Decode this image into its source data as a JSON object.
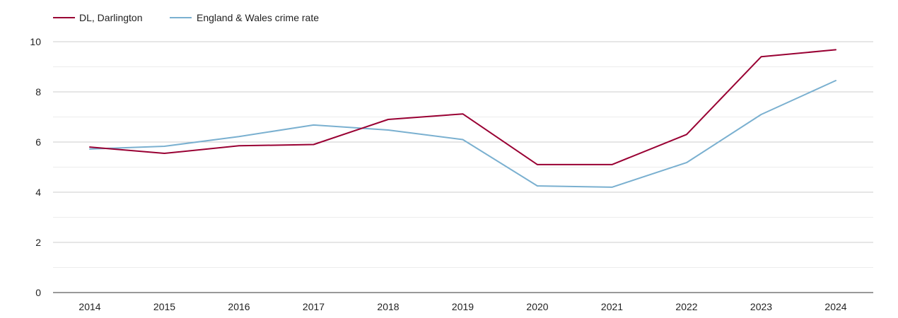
{
  "chart_data": {
    "type": "line",
    "title": "",
    "xlabel": "",
    "ylabel": "",
    "categories": [
      "2014",
      "2015",
      "2016",
      "2017",
      "2018",
      "2019",
      "2020",
      "2021",
      "2022",
      "2023",
      "2024"
    ],
    "ylim": [
      0,
      10
    ],
    "yticks": [
      "0",
      "2",
      "4",
      "6",
      "8",
      "10"
    ],
    "grid": true,
    "legend_position": "top-left",
    "series": [
      {
        "name": "DL, Darlington",
        "color": "#990033",
        "values": [
          5.8,
          5.55,
          5.85,
          5.9,
          6.9,
          7.12,
          5.1,
          5.1,
          6.3,
          9.4,
          9.68
        ]
      },
      {
        "name": "England & Wales crime rate",
        "color": "#7ab0d0",
        "values": [
          5.72,
          5.83,
          6.22,
          6.68,
          6.48,
          6.1,
          4.25,
          4.2,
          5.18,
          7.1,
          8.45
        ]
      }
    ]
  }
}
